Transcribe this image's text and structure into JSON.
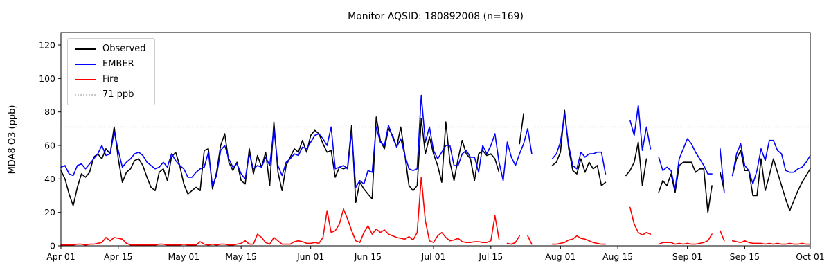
{
  "title": "Monitor AQSID: 180892008 (n=169)",
  "legend": {
    "observed_label": "Observed",
    "ember_label": "EMBER",
    "fire_label": "Fire",
    "threshold_label": "71 ppb"
  },
  "chart_data": {
    "type": "line",
    "title": "Monitor AQSID: 180892008 (n=169)",
    "xlabel": "",
    "ylabel": "MDA8 O3 (ppb)",
    "ylim": [
      0,
      127
    ],
    "grid": false,
    "legend_position": "upper left",
    "y_ticks": [
      0,
      20,
      40,
      60,
      80,
      100,
      120
    ],
    "x_tick_days": [
      0,
      14,
      30,
      44,
      61,
      75,
      91,
      105,
      122,
      136,
      153,
      167,
      183
    ],
    "x_tick_labels": [
      "Apr 01",
      "Apr 15",
      "May 01",
      "May 15",
      "Jun 01",
      "Jun 15",
      "Jul 01",
      "Jul 15",
      "Aug 01",
      "Aug 15",
      "Sep 01",
      "Sep 15",
      "Oct 01"
    ],
    "x_range_days": 183,
    "reference_line": {
      "value": 71,
      "label": "71 ppb",
      "color": "#c9c9c9",
      "style": "dotted"
    },
    "colors": {
      "observed": "#000000",
      "ember": "#0000ff",
      "fire": "#ff0000"
    },
    "series": [
      {
        "name": "Observed",
        "color": "#000000",
        "values": [
          45,
          40,
          31,
          24,
          35,
          43,
          41,
          44,
          53,
          55,
          52,
          58,
          55,
          71,
          52,
          38,
          44,
          46,
          51,
          52,
          48,
          41,
          35,
          33,
          44,
          46,
          39,
          53,
          56,
          48,
          37,
          31,
          33,
          35,
          33,
          57,
          58,
          34,
          44,
          60,
          67,
          50,
          45,
          50,
          39,
          37,
          58,
          43,
          54,
          47,
          56,
          36,
          74,
          44,
          33,
          48,
          53,
          58,
          56,
          63,
          56,
          66,
          69,
          67,
          61,
          56,
          57,
          41,
          47,
          46,
          47,
          72,
          26,
          38,
          34,
          31,
          28,
          77,
          63,
          58,
          70,
          66,
          59,
          71,
          54,
          36,
          33,
          36,
          76,
          55,
          65,
          55,
          48,
          38,
          74,
          50,
          39,
          52,
          63,
          55,
          52,
          39,
          55,
          57,
          54,
          55,
          52,
          44,
          null,
          null,
          null,
          null,
          61,
          79,
          null,
          null,
          null,
          null,
          null,
          null,
          48,
          50,
          56,
          81,
          58,
          45,
          43,
          52,
          44,
          50,
          46,
          48,
          36,
          38,
          null,
          null,
          null,
          null,
          42,
          45,
          50,
          62,
          36,
          52,
          null,
          null,
          32,
          39,
          36,
          43,
          32,
          48,
          50,
          50,
          50,
          44,
          46,
          46,
          20,
          36,
          null,
          44,
          33,
          null,
          42,
          52,
          57,
          45,
          45,
          30,
          30,
          52,
          33,
          42,
          52,
          44,
          36,
          28,
          21,
          27,
          33,
          38,
          42,
          46
        ]
      },
      {
        "name": "EMBER",
        "color": "#0000ff",
        "values": [
          47,
          48,
          43,
          42,
          48,
          49,
          46,
          49,
          52,
          55,
          60,
          54,
          55,
          68,
          57,
          47,
          50,
          52,
          55,
          56,
          54,
          50,
          48,
          46,
          47,
          50,
          47,
          55,
          51,
          48,
          46,
          41,
          41,
          44,
          46,
          47,
          56,
          36,
          42,
          57,
          60,
          52,
          47,
          49,
          43,
          40,
          55,
          46,
          48,
          47,
          53,
          48,
          70,
          48,
          42,
          50,
          52,
          55,
          54,
          59,
          58,
          62,
          66,
          67,
          64,
          60,
          71,
          46,
          47,
          48,
          46,
          68,
          35,
          39,
          37,
          45,
          44,
          71,
          62,
          60,
          72,
          65,
          59,
          64,
          54,
          46,
          45,
          46,
          90,
          62,
          71,
          57,
          52,
          56,
          60,
          60,
          48,
          48,
          55,
          57,
          53,
          53,
          44,
          60,
          55,
          60,
          67,
          50,
          39,
          62,
          53,
          48,
          55,
          61,
          70,
          55,
          null,
          null,
          null,
          null,
          52,
          55,
          62,
          79,
          60,
          48,
          46,
          56,
          53,
          55,
          55,
          56,
          56,
          43,
          null,
          null,
          null,
          null,
          null,
          75,
          66,
          84,
          57,
          71,
          58,
          null,
          53,
          45,
          47,
          45,
          34,
          52,
          58,
          64,
          61,
          56,
          52,
          48,
          43,
          43,
          null,
          58,
          32,
          null,
          42,
          55,
          61,
          48,
          45,
          37,
          45,
          58,
          51,
          63,
          63,
          57,
          55,
          45,
          44,
          44,
          46,
          47,
          50,
          54
        ]
      },
      {
        "name": "Fire",
        "color": "#ff0000",
        "values": [
          0.5,
          0.5,
          0.5,
          0.5,
          1,
          1,
          0.5,
          1,
          1,
          1.5,
          2,
          5,
          3,
          5,
          4.5,
          4,
          1.5,
          0.5,
          0.5,
          0.5,
          0.5,
          0.5,
          0.5,
          0.5,
          1,
          1,
          0.5,
          0.5,
          0.5,
          0.5,
          1,
          0.5,
          0.5,
          0.5,
          2.5,
          1,
          0.5,
          1,
          0.5,
          1,
          1,
          0.5,
          0.5,
          1,
          1.5,
          3,
          1,
          1,
          7,
          5,
          2,
          1,
          5,
          3,
          1,
          1,
          1,
          2.5,
          3,
          2.5,
          1.5,
          1.5,
          2,
          1.5,
          5,
          21,
          8,
          9,
          13,
          22,
          16,
          9,
          3,
          2,
          8,
          12,
          7,
          10,
          8,
          9.5,
          7,
          6,
          5,
          4.5,
          4,
          5.5,
          3.5,
          8,
          41,
          15,
          3,
          2,
          6,
          8,
          5,
          3,
          3.5,
          4.5,
          2.5,
          2,
          2,
          2.5,
          2.5,
          2,
          2,
          3,
          18,
          4,
          null,
          1.5,
          1,
          2,
          6,
          null,
          6,
          1,
          null,
          null,
          null,
          null,
          1,
          1,
          1.5,
          2,
          3.5,
          4,
          6,
          4.5,
          4,
          3,
          2,
          1.5,
          1,
          1,
          null,
          null,
          null,
          null,
          null,
          23,
          13,
          8,
          6.5,
          8,
          7,
          null,
          1,
          2,
          2,
          2,
          1,
          1.5,
          1,
          1.5,
          1,
          1,
          1.5,
          2,
          3,
          7,
          null,
          9,
          3,
          null,
          3,
          2.5,
          2,
          3,
          2,
          1.5,
          1.5,
          1.5,
          1,
          1.5,
          1,
          1.5,
          1,
          1,
          1.5,
          1,
          1,
          1.5,
          1,
          1
        ]
      }
    ]
  }
}
